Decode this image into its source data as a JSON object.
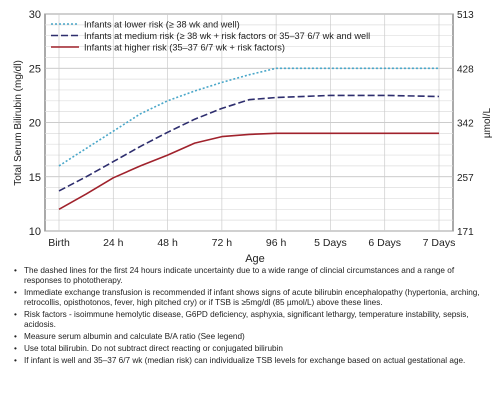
{
  "chart_data": {
    "type": "line",
    "xlabel": "Age",
    "ylabel": "Total Serum Bilirubin (mg/dl)",
    "y2label": "µmol/L",
    "categories": [
      "Birth",
      "24 h",
      "48 h",
      "72 h",
      "96 h",
      "5 Days",
      "6 Days",
      "7 Days"
    ],
    "ylim": [
      10,
      30
    ],
    "y_ticks": [
      10,
      15,
      20,
      25,
      30
    ],
    "y2_ticks": [
      "171",
      "257",
      "342",
      "428",
      "513"
    ],
    "grid": true,
    "legend_position": "top-left",
    "series": [
      {
        "name": "Infants at lower risk (≥ 38 wk and well)",
        "color": "#4aa7c9",
        "dash": "dotted",
        "x": [
          0,
          0.5,
          1,
          1.5,
          2,
          2.5,
          3,
          3.5,
          4,
          5,
          6,
          7
        ],
        "y": [
          16,
          17.6,
          19.2,
          20.8,
          22,
          22.9,
          23.7,
          24.4,
          25,
          25,
          25,
          25
        ]
      },
      {
        "name": "Infants at medium risk (≥ 38 wk + risk factors or 35–37 6/7 wk and well",
        "color": "#2e2e6e",
        "dash": "dashed",
        "x": [
          0,
          0.5,
          1,
          1.5,
          2,
          2.5,
          3,
          3.5,
          4,
          5,
          6,
          7
        ],
        "y": [
          13.7,
          15,
          16.4,
          17.8,
          19.1,
          20.3,
          21.3,
          22.1,
          22.3,
          22.5,
          22.5,
          22.4
        ]
      },
      {
        "name": "Infants at higher risk (35–37 6/7 wk + risk factors)",
        "color": "#a0222c",
        "dash": "solid",
        "x": [
          0,
          0.5,
          1,
          1.5,
          2,
          2.5,
          3,
          3.5,
          4,
          5,
          6,
          7
        ],
        "y": [
          12,
          13.4,
          14.9,
          16,
          17,
          18.1,
          18.7,
          18.9,
          19,
          19,
          19,
          19
        ]
      }
    ]
  },
  "notes": [
    "The dashed lines for the first 24 hours indicate uncertainty due to a wide range of clincial circumstances and a range of responses to phototherapy.",
    "Immediate exchange transfusion is recommended if infant shows signs of acute bilirubin encephalopathy (hypertonia, arching, retrocollis, opisthotonos, fever, high pitched cry) or if TSB is ≥5mg/dl (85 µmol/L) above these lines.",
    "Risk factors - isoimmune hemolytic disease, G6PD deficiency, asphyxia, significant lethargy, temperature instability, sepsis, acidosis.",
    "Measure serum albumin and calculate B/A ratio (See legend)",
    "Use total bilirubin. Do not subtract direct reacting or conjugated bilirubin",
    "If infant is well and 35–37 6/7 wk (median risk) can individualize TSB levels for exchange based on actual gestational age."
  ]
}
